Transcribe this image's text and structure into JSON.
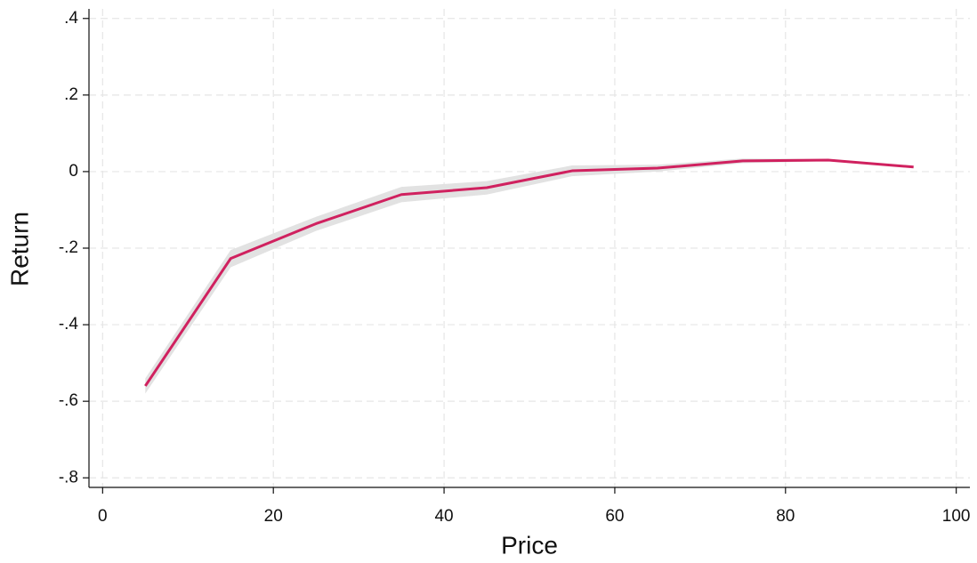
{
  "chart_data": {
    "type": "line",
    "x_label": "Price",
    "y_label": "Return",
    "x": [
      5,
      15,
      25,
      35,
      45,
      55,
      65,
      75,
      85,
      95
    ],
    "values": [
      -0.56,
      -0.227,
      -0.136,
      -0.06,
      -0.042,
      0.002,
      0.009,
      0.028,
      0.03,
      0.012
    ],
    "lower": [
      -0.58,
      -0.25,
      -0.155,
      -0.08,
      -0.06,
      -0.012,
      0.0,
      0.022,
      0.027,
      0.01
    ],
    "upper": [
      -0.54,
      -0.205,
      -0.118,
      -0.04,
      -0.025,
      0.016,
      0.018,
      0.034,
      0.033,
      0.014
    ],
    "color": "#d0215f",
    "band_color": "#e2e2e2",
    "xlim": [
      -1.6,
      101.6
    ],
    "ylim": [
      -0.825,
      0.425
    ],
    "xticks": [
      0,
      20,
      40,
      60,
      80,
      100
    ],
    "yticks": [
      {
        "value": 0.4,
        "label": ".4"
      },
      {
        "value": 0.2,
        "label": ".2"
      },
      0,
      {
        "value": -0.2,
        "label": "-.2"
      },
      {
        "value": -0.4,
        "label": "-.4"
      },
      {
        "value": -0.6,
        "label": "-.6"
      },
      {
        "value": -0.8,
        "label": "-.8"
      }
    ],
    "grid": true
  }
}
